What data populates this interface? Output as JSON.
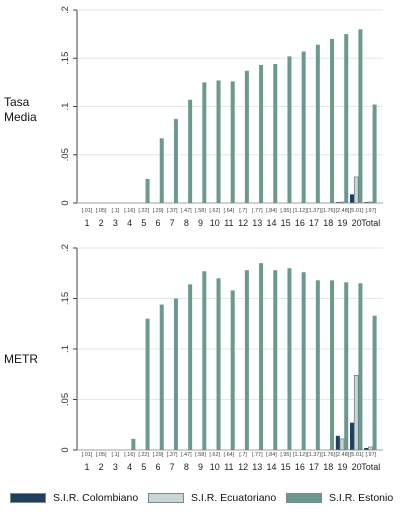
{
  "chart_data": [
    {
      "type": "bar",
      "panel_label_lines": [
        "Tasa",
        "Media"
      ],
      "categories": [
        "1",
        "2",
        "3",
        "4",
        "5",
        "6",
        "7",
        "8",
        "9",
        "10",
        "11",
        "12",
        "13",
        "14",
        "15",
        "16",
        "17",
        "18",
        "19",
        "20",
        "Total"
      ],
      "group_labels": [
        "[.01]",
        "[.05]",
        "[.1]",
        "[.16]",
        "[.22]",
        "[.29]",
        "[.37]",
        "[.47]",
        "[.58]",
        "[.62]",
        "[.64]",
        "[.7]",
        "[.77]",
        "[.84]",
        "[.95]",
        "[1.12]",
        "[1.37]",
        "[1.76]",
        "[2.48]",
        "[5.01]",
        "[.97]"
      ],
      "y_ticks": [
        0,
        0.05,
        0.1,
        0.15,
        0.2
      ],
      "y_tick_labels": [
        "0",
        ".05",
        ".1",
        ".15",
        ".2"
      ],
      "ylim": [
        0,
        0.2
      ],
      "grid": true,
      "series": [
        {
          "name": "S.I.R. Colombiano",
          "color": "#1f3f5f",
          "values": [
            0,
            0,
            0,
            0,
            0,
            0,
            0,
            0,
            0,
            0,
            0,
            0,
            0,
            0,
            0,
            0,
            0,
            0,
            0.001,
            0.009,
            0.001
          ]
        },
        {
          "name": "S.I.R. Ecuatoriano",
          "color": "#c9d6d6",
          "values": [
            0,
            0,
            0,
            0,
            0,
            0,
            0,
            0,
            0,
            0,
            0,
            0,
            0,
            0,
            0,
            0,
            0,
            0,
            0.001,
            0.027,
            0.001
          ]
        },
        {
          "name": "S.I.R. Estonio",
          "color": "#6a9990",
          "values": [
            0,
            0,
            0,
            0,
            0.025,
            0.067,
            0.087,
            0.107,
            0.125,
            0.127,
            0.126,
            0.137,
            0.143,
            0.144,
            0.152,
            0.157,
            0.164,
            0.17,
            0.175,
            0.18,
            0.102
          ]
        }
      ]
    },
    {
      "type": "bar",
      "panel_label_lines": [
        "METR"
      ],
      "categories": [
        "1",
        "2",
        "3",
        "4",
        "5",
        "6",
        "7",
        "8",
        "9",
        "10",
        "11",
        "12",
        "13",
        "14",
        "15",
        "16",
        "17",
        "18",
        "19",
        "20",
        "Total"
      ],
      "group_labels": [
        "[.01]",
        "[.05]",
        "[.1]",
        "[.16]",
        "[.22]",
        "[.29]",
        "[.37]",
        "[.47]",
        "[.58]",
        "[.62]",
        "[.64]",
        "[.7]",
        "[.77]",
        "[.84]",
        "[.95]",
        "[1.12]",
        "[1.37]",
        "[1.76]",
        "[2.48]",
        "[5.01]",
        "[.97]"
      ],
      "y_ticks": [
        0,
        0.05,
        0.1,
        0.15,
        0.2
      ],
      "y_tick_labels": [
        "0",
        ".05",
        ".1",
        ".15",
        ".2"
      ],
      "ylim": [
        0,
        0.2
      ],
      "grid": true,
      "series": [
        {
          "name": "S.I.R. Colombiano",
          "color": "#1f3f5f",
          "values": [
            0,
            0,
            0,
            0,
            0,
            0,
            0,
            0,
            0,
            0,
            0,
            0,
            0,
            0,
            0,
            0,
            0,
            0,
            0.014,
            0.027,
            0.002
          ]
        },
        {
          "name": "S.I.R. Ecuatoriano",
          "color": "#c9d6d6",
          "values": [
            0,
            0,
            0,
            0,
            0,
            0,
            0,
            0,
            0,
            0,
            0,
            0,
            0,
            0,
            0,
            0,
            0,
            0,
            0.011,
            0.074,
            0.003
          ]
        },
        {
          "name": "S.I.R. Estonio",
          "color": "#6a9990",
          "values": [
            0,
            0,
            0,
            0.011,
            0.13,
            0.144,
            0.15,
            0.164,
            0.177,
            0.17,
            0.158,
            0.178,
            0.185,
            0.178,
            0.18,
            0.176,
            0.168,
            0.168,
            0.166,
            0.165,
            0.133
          ]
        }
      ]
    }
  ],
  "legend": {
    "placement": "bottom",
    "items": [
      {
        "label": "S.I.R. Colombiano",
        "color": "#1f3f5f"
      },
      {
        "label": "S.I.R. Ecuatoriano",
        "color": "#c9d6d6"
      },
      {
        "label": "S.I.R. Estonio",
        "color": "#6a9990"
      }
    ]
  }
}
